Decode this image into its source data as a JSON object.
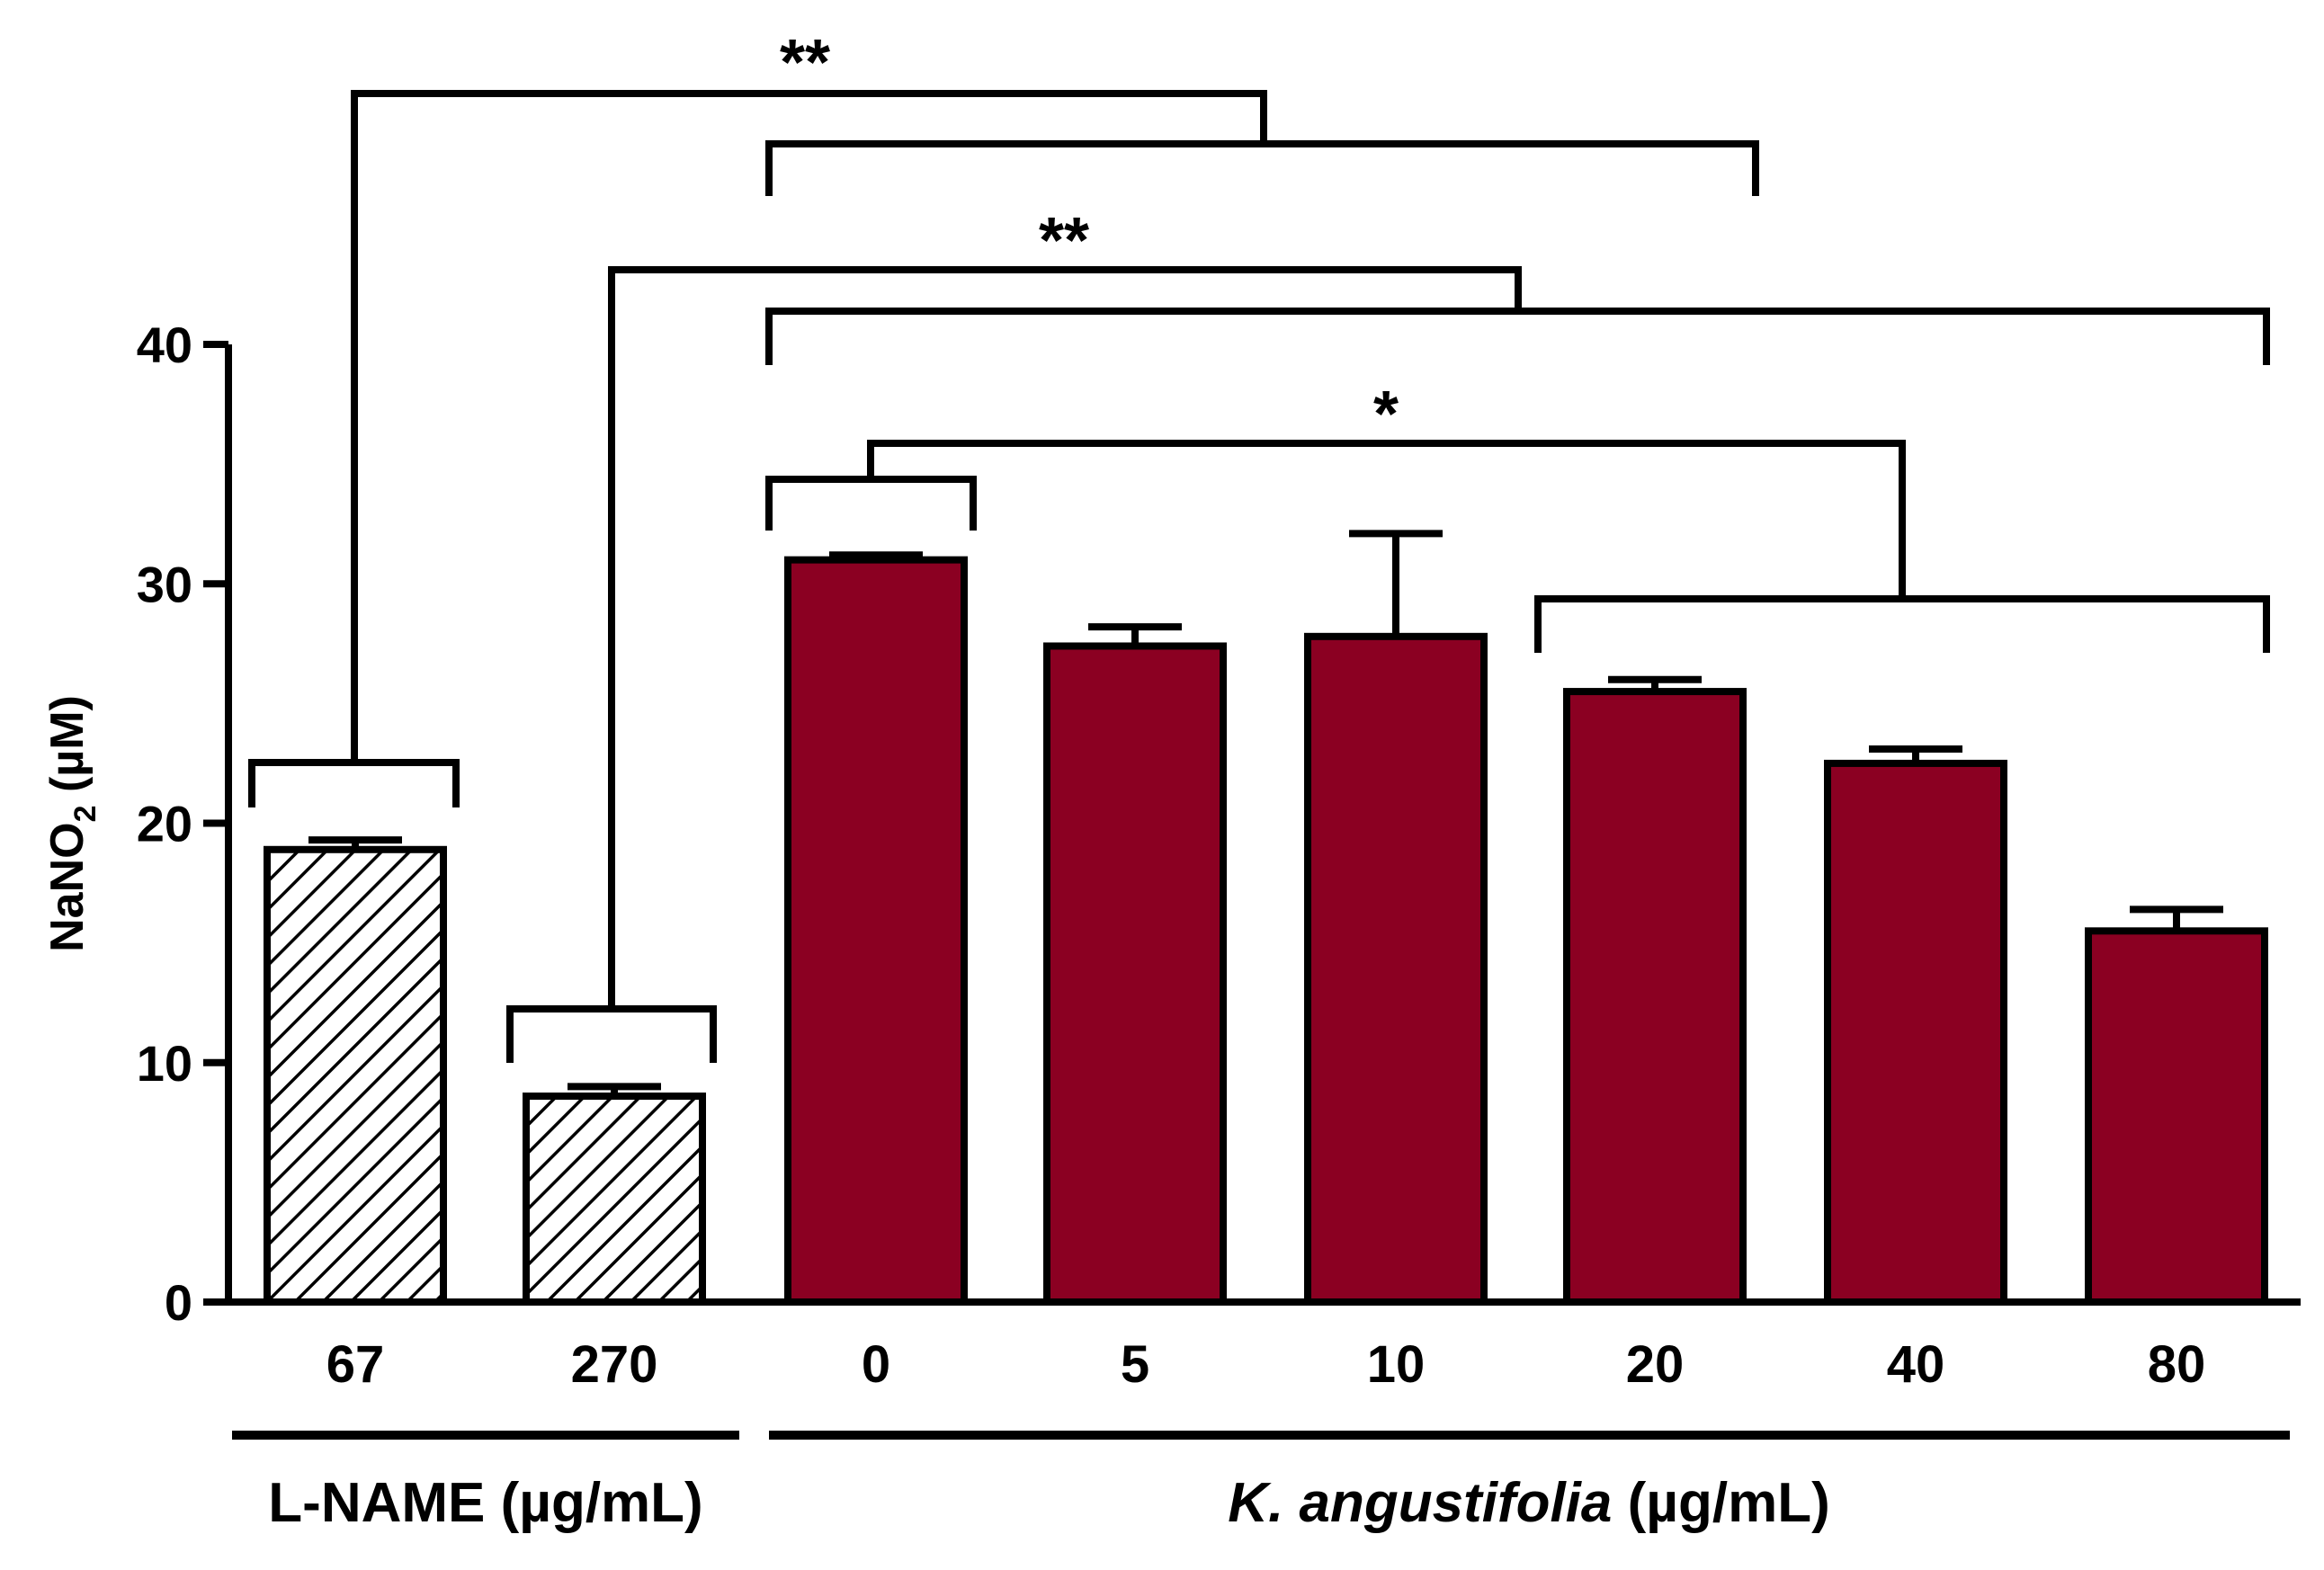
{
  "chart_data": {
    "type": "bar",
    "title": "",
    "ylabel_main": "NaNO",
    "ylabel_sub": "2",
    "ylabel_unit": " (µM)",
    "ylim": [
      0,
      40
    ],
    "yticks": [
      0,
      10,
      20,
      30,
      40
    ],
    "categories": [
      "67",
      "270",
      "0",
      "5",
      "10",
      "20",
      "40",
      "80"
    ],
    "values": [
      18.9,
      8.6,
      31.0,
      27.4,
      27.8,
      25.5,
      22.5,
      15.5
    ],
    "errors": [
      0.4,
      0.4,
      0.2,
      0.8,
      4.3,
      0.5,
      0.6,
      0.9
    ],
    "series": [
      {
        "name": "L-NAME",
        "indices": [
          0,
          1
        ],
        "pattern": "hatched"
      },
      {
        "name": "K. angustifolia",
        "indices": [
          2,
          3,
          4,
          5,
          6,
          7
        ],
        "color": "#8b0022"
      }
    ],
    "groups": [
      {
        "label": "L-NAME (µg/mL)",
        "italic_part": "",
        "rest": "L-NAME (µg/mL)"
      },
      {
        "label": "K. angustifolia (µg/mL)",
        "italic_part": "K. angustifolia",
        "rest": " (µg/mL)"
      }
    ],
    "significance": [
      {
        "label": "**",
        "left_group": [
          0
        ],
        "right_group": [
          2,
          5
        ]
      },
      {
        "label": "**",
        "left_group": [
          1
        ],
        "right_group": [
          2,
          7
        ]
      },
      {
        "label": "*",
        "left_group": [
          2
        ],
        "right_group": [
          5,
          7
        ]
      }
    ]
  },
  "colors": {
    "bar_fill": "#8b0022",
    "axis": "#000000",
    "hatch": "#000000"
  }
}
